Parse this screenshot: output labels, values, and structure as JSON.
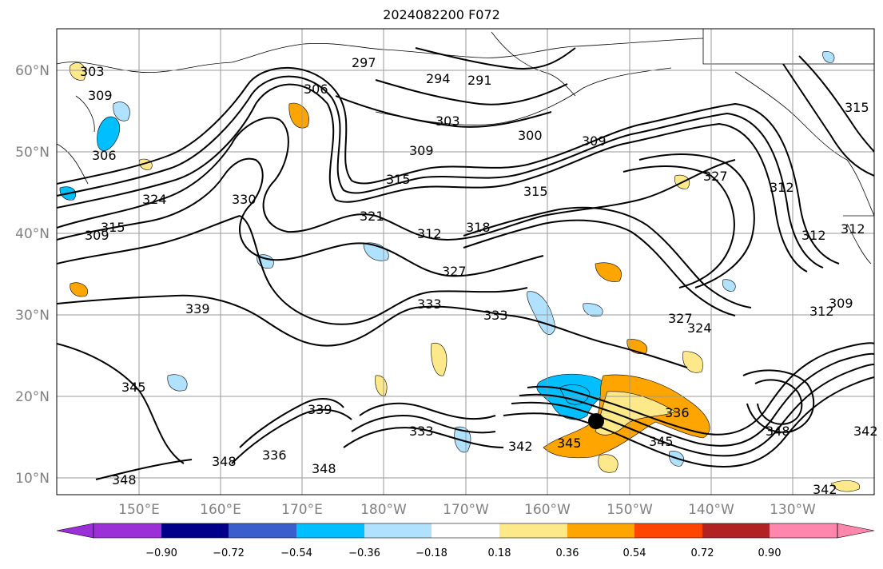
{
  "title": "2024082200 F072",
  "map": {
    "latitude_labels": [
      "60°N",
      "50°N",
      "40°N",
      "30°N",
      "20°N",
      "10°N"
    ],
    "longitude_labels": [
      "150°E",
      "160°E",
      "170°E",
      "180°W",
      "170°W",
      "160°W",
      "150°W",
      "140°W",
      "130°W"
    ],
    "contour_labels": [
      "297",
      "294",
      "291",
      "306",
      "303",
      "300",
      "309",
      "309",
      "306",
      "309",
      "315",
      "315",
      "327",
      "312",
      "312",
      "321",
      "312",
      "318",
      "330",
      "324",
      "327",
      "339",
      "333",
      "333",
      "327",
      "324",
      "312",
      "309",
      "345",
      "339",
      "336",
      "348",
      "333",
      "342",
      "345",
      "348",
      "348",
      "345",
      "342",
      "348",
      "336",
      "315",
      "312",
      "309",
      "342",
      "315",
      "303"
    ],
    "land_color": "#ffffff",
    "line_color": "#000000",
    "grid_color": "#9a9a9a"
  },
  "colorbar": {
    "tick_labels": [
      "−0.90",
      "−0.72",
      "−0.54",
      "−0.36",
      "−0.18",
      "0.18",
      "0.36",
      "0.54",
      "0.72",
      "0.90"
    ],
    "colors": [
      "#9b30d9",
      "#00008b",
      "#3a5fcd",
      "#00bfff",
      "#b0e2ff",
      "#ffffff",
      "#fee98a",
      "#ffa500",
      "#ff4500",
      "#b22222",
      "#ff86ad"
    ],
    "bounds": [
      -0.9,
      -0.72,
      -0.54,
      -0.36,
      -0.18,
      0.18,
      0.36,
      0.54,
      0.72,
      0.9
    ]
  }
}
